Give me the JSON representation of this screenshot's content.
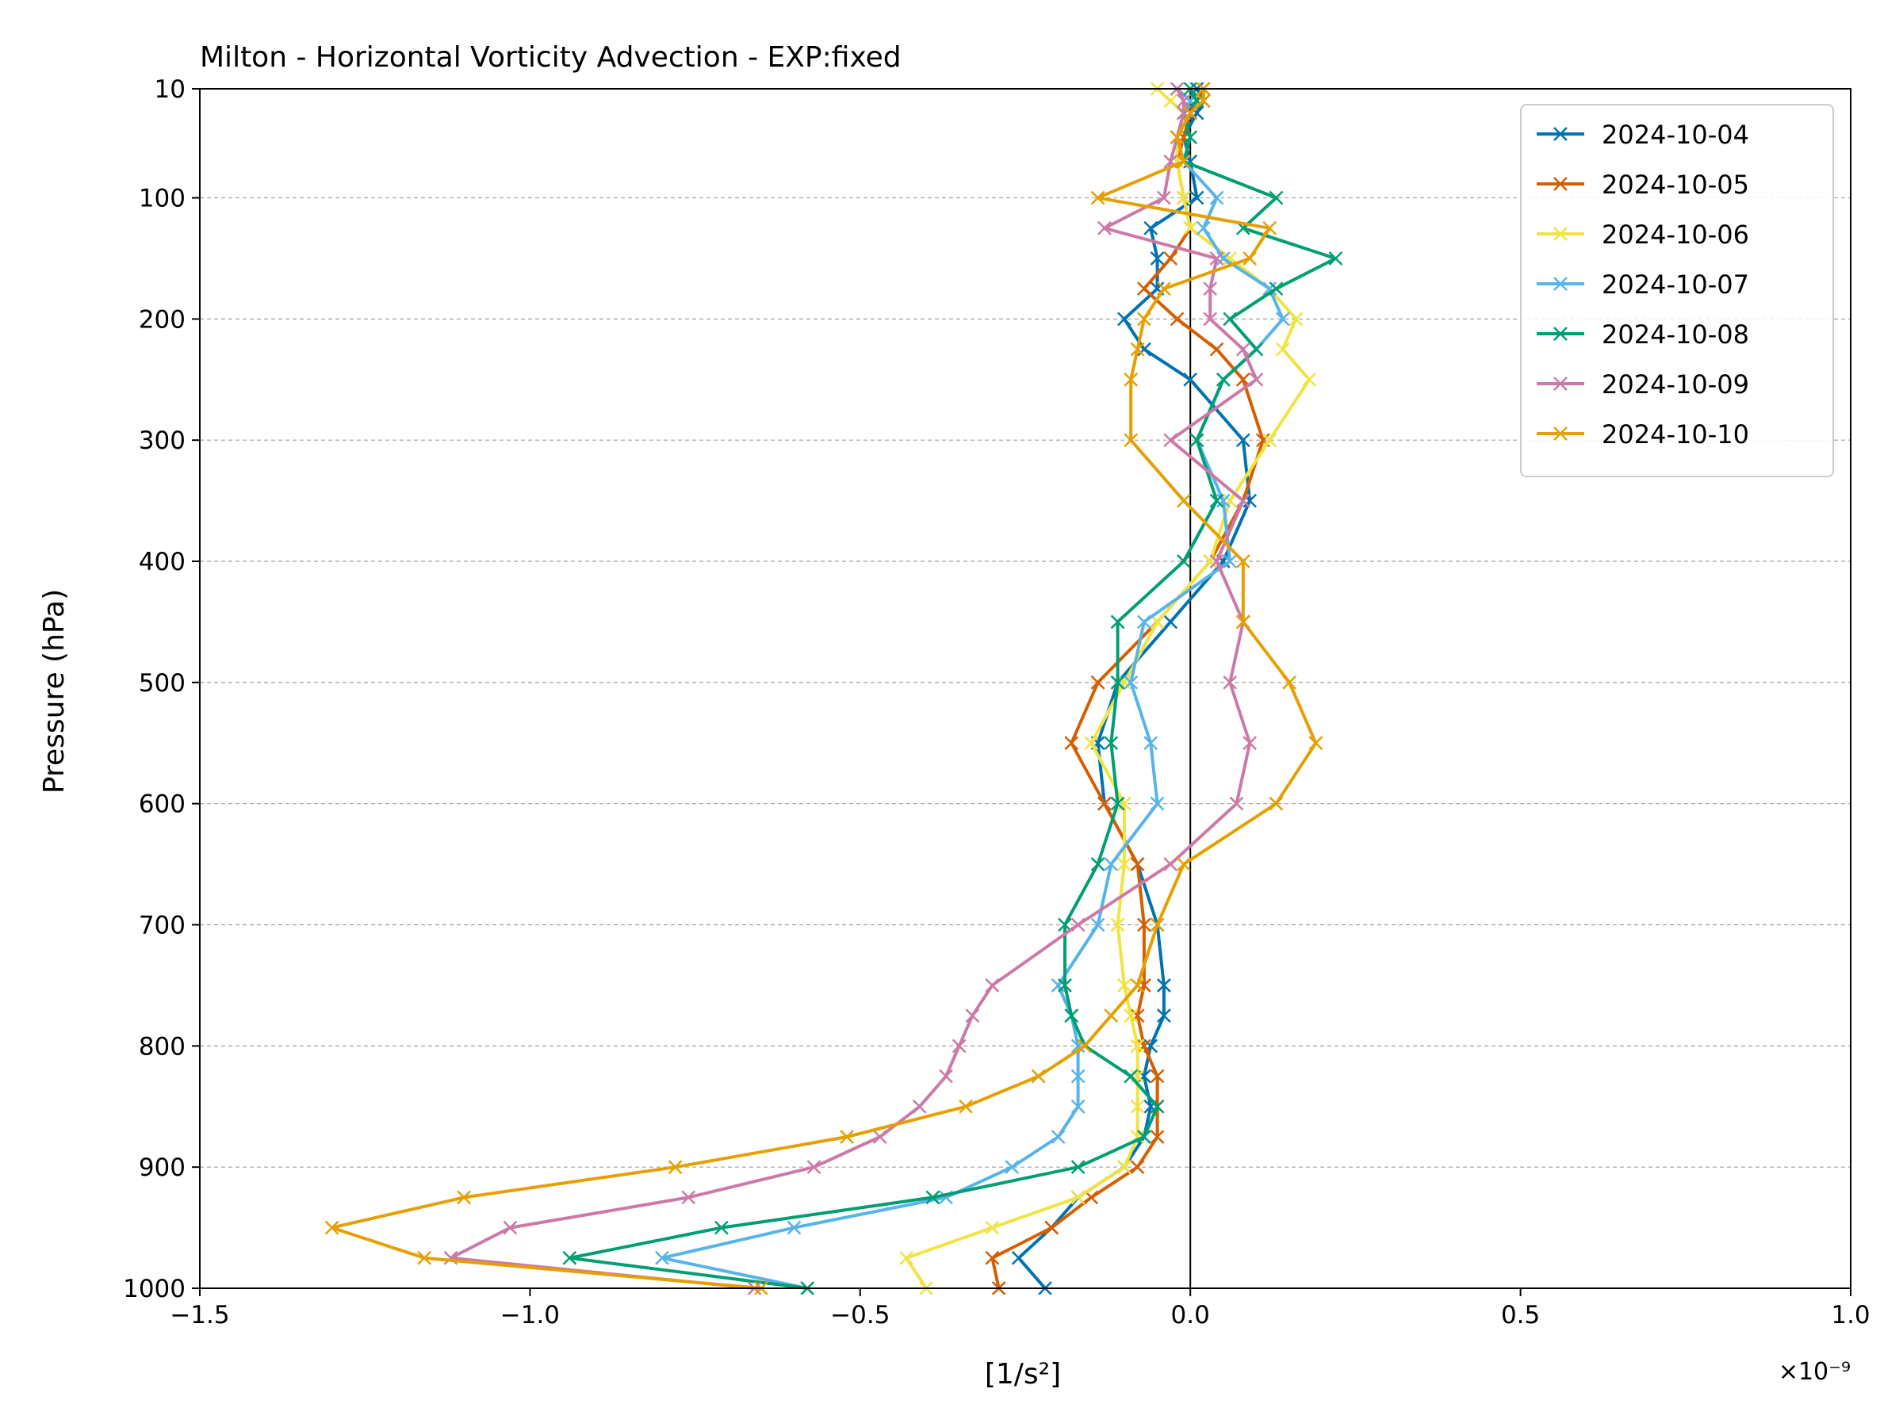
{
  "chart_data": {
    "type": "line",
    "title": "Milton - Horizontal Vorticity Advection - EXP:fixed",
    "xlabel": "[1/s²]",
    "ylabel": "Pressure (hPa)",
    "x_scale_label": "×10⁻⁹",
    "x_unit_multiplier": 1e-09,
    "xlim": [
      -1.5,
      1.0
    ],
    "ylim": [
      1000,
      10
    ],
    "y_inverted": true,
    "x_ticks": [
      -1.5,
      -1.0,
      -0.5,
      0.0,
      0.5,
      1.0
    ],
    "x_tick_labels": [
      "−1.5",
      "−1.0",
      "−0.5",
      "0.0",
      "0.5",
      "1.0"
    ],
    "y_ticks": [
      10,
      100,
      200,
      300,
      400,
      500,
      600,
      700,
      800,
      900,
      1000
    ],
    "y_tick_labels": [
      "10",
      "100",
      "200",
      "300",
      "400",
      "500",
      "600",
      "700",
      "800",
      "900",
      "1000"
    ],
    "grid": "horizontal dashed at y ticks",
    "zero_line": true,
    "legend_position": "top-right",
    "marker": "x",
    "levels": [
      1000,
      975,
      950,
      925,
      900,
      875,
      850,
      825,
      800,
      775,
      750,
      700,
      650,
      600,
      550,
      500,
      450,
      400,
      350,
      300,
      250,
      225,
      200,
      175,
      150,
      125,
      100,
      70,
      50,
      30,
      20,
      10
    ],
    "series": [
      {
        "name": "2024-10-04",
        "color": "#0072B2",
        "values": [
          -0.22,
          -0.26,
          -0.21,
          -0.17,
          -0.1,
          -0.07,
          -0.06,
          -0.07,
          -0.06,
          -0.04,
          -0.04,
          -0.05,
          -0.08,
          -0.13,
          -0.14,
          -0.11,
          -0.03,
          0.05,
          0.09,
          0.08,
          0.0,
          -0.07,
          -0.1,
          -0.05,
          -0.05,
          -0.06,
          0.01,
          0.0,
          -0.01,
          0.01,
          0.02,
          0.01
        ]
      },
      {
        "name": "2024-10-05",
        "color": "#D55E00",
        "values": [
          -0.29,
          -0.3,
          -0.21,
          -0.15,
          -0.08,
          -0.05,
          -0.05,
          -0.05,
          -0.07,
          -0.08,
          -0.07,
          -0.07,
          -0.08,
          -0.13,
          -0.18,
          -0.14,
          -0.05,
          0.03,
          0.08,
          0.11,
          0.08,
          0.04,
          -0.02,
          -0.07,
          -0.03,
          0.0,
          -0.01,
          -0.02,
          -0.01,
          0.0,
          0.01,
          0.02
        ]
      },
      {
        "name": "2024-10-06",
        "color": "#F0E442",
        "values": [
          -0.4,
          -0.43,
          -0.3,
          -0.17,
          -0.1,
          -0.08,
          -0.08,
          -0.08,
          -0.08,
          -0.09,
          -0.1,
          -0.11,
          -0.1,
          -0.1,
          -0.15,
          -0.1,
          -0.05,
          0.03,
          0.06,
          0.12,
          0.18,
          0.14,
          0.16,
          0.12,
          0.06,
          0.0,
          -0.01,
          -0.02,
          -0.02,
          -0.01,
          -0.03,
          -0.05
        ]
      },
      {
        "name": "2024-10-07",
        "color": "#56B4E9",
        "values": [
          -0.58,
          -0.8,
          -0.6,
          -0.37,
          -0.27,
          -0.2,
          -0.17,
          -0.17,
          -0.17,
          -0.18,
          -0.2,
          -0.14,
          -0.12,
          -0.05,
          -0.06,
          -0.09,
          -0.07,
          0.06,
          0.05,
          0.01,
          0.05,
          0.1,
          0.14,
          0.12,
          0.05,
          0.02,
          0.04,
          -0.01,
          -0.02,
          -0.01,
          0.0,
          -0.02
        ]
      },
      {
        "name": "2024-10-08",
        "color": "#009E73",
        "values": [
          -0.58,
          -0.94,
          -0.71,
          -0.39,
          -0.17,
          -0.07,
          -0.05,
          -0.09,
          -0.16,
          -0.18,
          -0.19,
          -0.19,
          -0.14,
          -0.11,
          -0.12,
          -0.11,
          -0.11,
          -0.01,
          0.04,
          0.01,
          0.05,
          0.1,
          0.06,
          0.13,
          0.22,
          0.08,
          0.13,
          -0.01,
          0.0,
          -0.01,
          0.01,
          0.0
        ]
      },
      {
        "name": "2024-10-09",
        "color": "#CC79A7",
        "values": [
          -0.66,
          -1.12,
          -1.03,
          -0.76,
          -0.57,
          -0.47,
          -0.41,
          -0.37,
          -0.35,
          -0.33,
          -0.3,
          -0.17,
          -0.03,
          0.07,
          0.09,
          0.06,
          0.08,
          0.04,
          0.08,
          -0.03,
          0.1,
          0.08,
          0.03,
          0.03,
          0.04,
          -0.13,
          -0.04,
          -0.03,
          -0.02,
          -0.01,
          -0.01,
          -0.02
        ]
      },
      {
        "name": "2024-10-10",
        "color": "#E69F00",
        "values": [
          -0.65,
          -1.16,
          -1.3,
          -1.1,
          -0.78,
          -0.52,
          -0.34,
          -0.23,
          -0.16,
          -0.12,
          -0.08,
          -0.05,
          -0.01,
          0.13,
          0.19,
          0.15,
          0.08,
          0.08,
          -0.01,
          -0.09,
          -0.09,
          -0.08,
          -0.07,
          -0.04,
          0.09,
          0.12,
          -0.14,
          -0.01,
          -0.02,
          0.0,
          0.02,
          0.02
        ]
      }
    ]
  }
}
